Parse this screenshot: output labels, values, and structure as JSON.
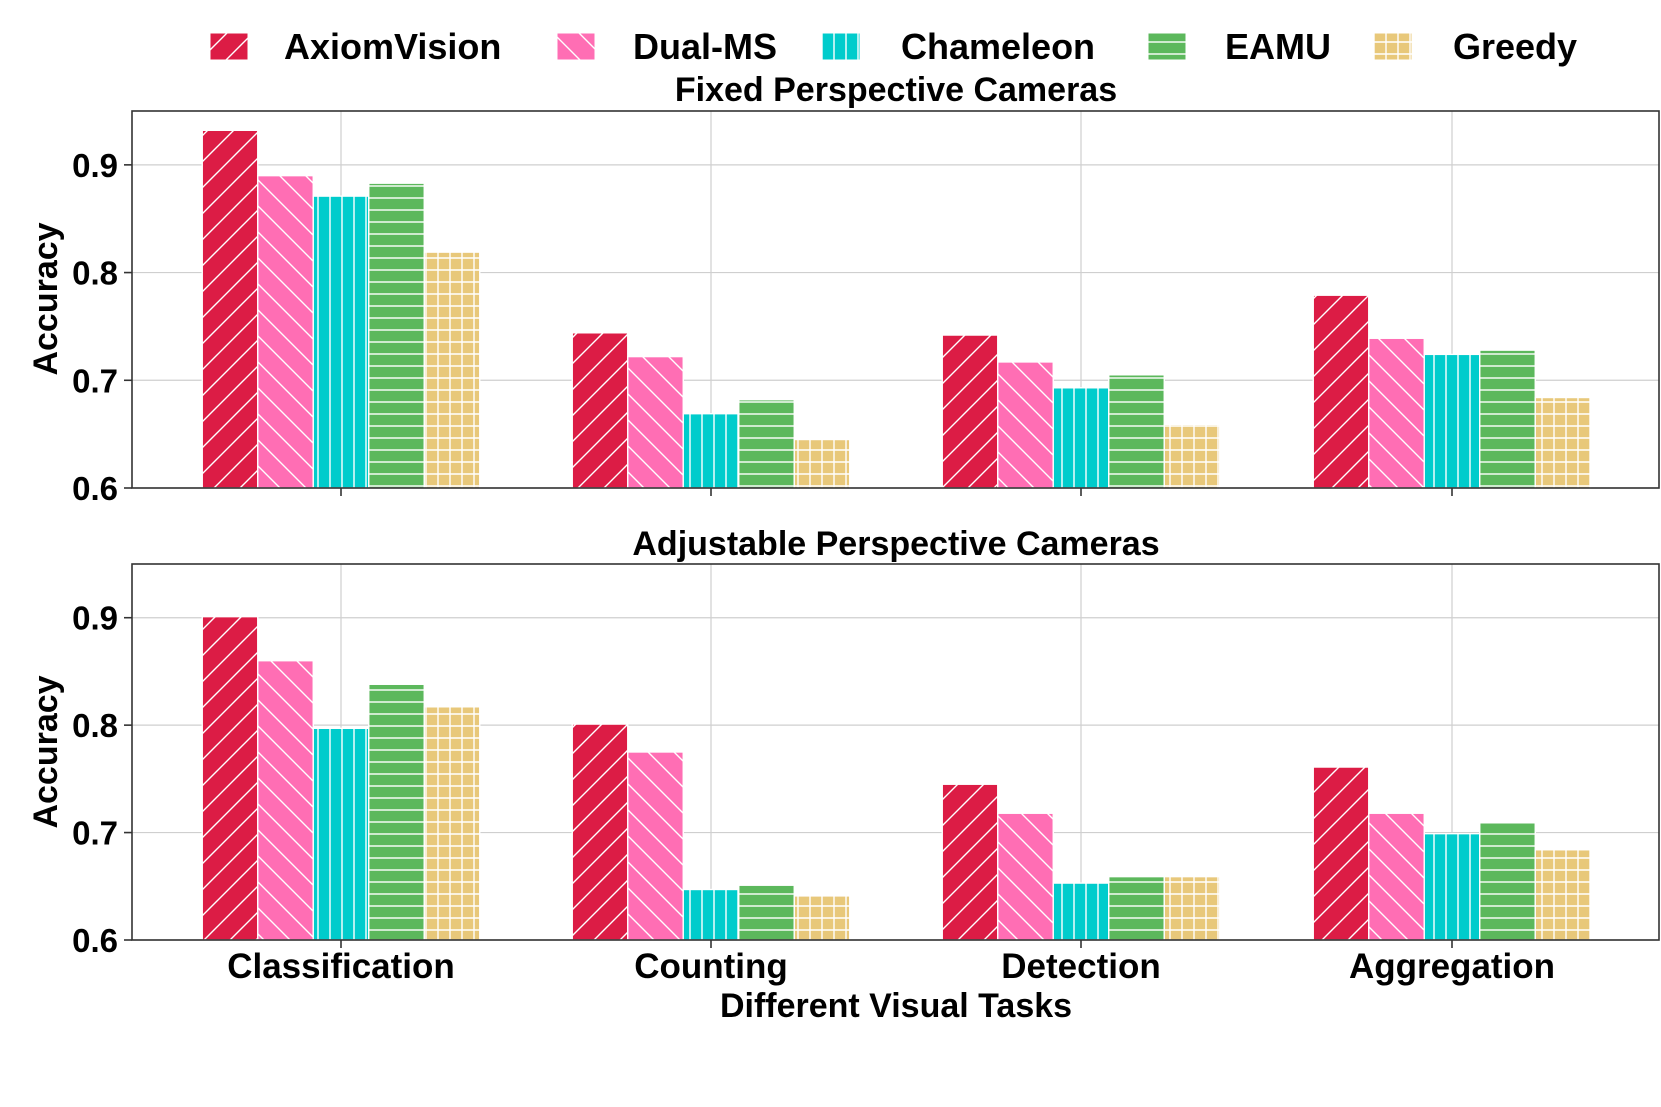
{
  "chart_data": [
    {
      "type": "bar",
      "title": "Fixed Perspective Cameras",
      "categories": [
        "Classification",
        "Counting",
        "Detection",
        "Aggregation"
      ],
      "series": [
        {
          "name": "AxiomVision",
          "values": [
            0.932,
            0.744,
            0.742,
            0.779
          ]
        },
        {
          "name": "Dual-MS",
          "values": [
            0.89,
            0.722,
            0.717,
            0.739
          ]
        },
        {
          "name": "Chameleon",
          "values": [
            0.871,
            0.669,
            0.693,
            0.724
          ]
        },
        {
          "name": "EAMU",
          "values": [
            0.883,
            0.682,
            0.705,
            0.728
          ]
        },
        {
          "name": "Greedy",
          "values": [
            0.819,
            0.645,
            0.659,
            0.684
          ]
        }
      ],
      "xlabel": "",
      "ylabel": "Accuracy",
      "ylim": [
        0.6,
        0.95
      ],
      "yticks": [
        "0.6",
        "0.7",
        "0.8",
        "0.9"
      ],
      "grid": true
    },
    {
      "type": "bar",
      "title": "Adjustable Perspective Cameras",
      "categories": [
        "Classification",
        "Counting",
        "Detection",
        "Aggregation"
      ],
      "series": [
        {
          "name": "AxiomVision",
          "values": [
            0.901,
            0.801,
            0.745,
            0.761
          ]
        },
        {
          "name": "Dual-MS",
          "values": [
            0.86,
            0.775,
            0.718,
            0.718
          ]
        },
        {
          "name": "Chameleon",
          "values": [
            0.797,
            0.647,
            0.653,
            0.699
          ]
        },
        {
          "name": "EAMU",
          "values": [
            0.838,
            0.651,
            0.659,
            0.709
          ]
        },
        {
          "name": "Greedy",
          "values": [
            0.817,
            0.641,
            0.659,
            0.684
          ]
        }
      ],
      "xlabel": "Different Visual Tasks",
      "ylabel": "Accuracy",
      "ylim": [
        0.6,
        0.95
      ],
      "yticks": [
        "0.6",
        "0.7",
        "0.8",
        "0.9"
      ],
      "grid": true
    }
  ],
  "legend": {
    "placement": "top-center",
    "items": [
      {
        "name": "AxiomVision",
        "color": "#dc1c45",
        "hatch": "diagonal-forward"
      },
      {
        "name": "Dual-MS",
        "color": "#ff6eb4",
        "hatch": "diagonal-back"
      },
      {
        "name": "Chameleon",
        "color": "#00cccc",
        "hatch": "vertical"
      },
      {
        "name": "EAMU",
        "color": "#5cb85c",
        "hatch": "horizontal"
      },
      {
        "name": "Greedy",
        "color": "#e8c87a",
        "hatch": "grid"
      }
    ]
  }
}
